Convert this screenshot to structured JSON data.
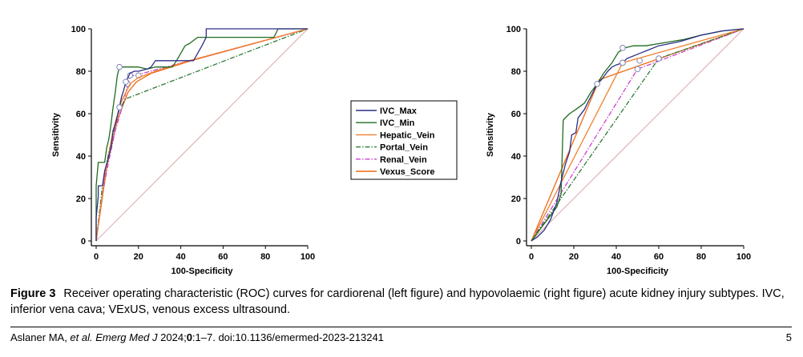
{
  "colors": {
    "IVC_Max": "#2b2f86",
    "IVC_Min": "#1f6b1f",
    "Hepatic_Vein": "#f08030",
    "Portal_Vein": "#2f7a36",
    "Renal_Vein": "#cc44cc",
    "Vexus_Score": "#ee6a10",
    "reference": "#d9a9a9"
  },
  "chart_data": [
    {
      "type": "line",
      "xlabel": "100-Specificity",
      "ylabel": "Sensitivity",
      "xlim": [
        0,
        100
      ],
      "ylim": [
        0,
        100
      ],
      "xticks": [
        "0",
        "20",
        "40",
        "60",
        "80",
        "100"
      ],
      "yticks": [
        "0",
        "20",
        "40",
        "60",
        "80",
        "100"
      ],
      "legend": [
        "IVC_Max",
        "IVC_Min",
        "Hepatic_Vein",
        "Portal_Vein",
        "Renal_Vein",
        "Vexus_Score"
      ],
      "legend_position": "right",
      "series": [
        {
          "name": "IVC_Max",
          "style": "solid",
          "points": [
            [
              0,
              0
            ],
            [
              0,
              11
            ],
            [
              1,
              21
            ],
            [
              1,
              26
            ],
            [
              3,
              26
            ],
            [
              4,
              33
            ],
            [
              6,
              40
            ],
            [
              7,
              44
            ],
            [
              8,
              52
            ],
            [
              9,
              55
            ],
            [
              10,
              59
            ],
            [
              11,
              63
            ],
            [
              12,
              68
            ],
            [
              13,
              71
            ],
            [
              14,
              75
            ],
            [
              16,
              79
            ],
            [
              18,
              80
            ],
            [
              20,
              80
            ],
            [
              24,
              81
            ],
            [
              26,
              82
            ],
            [
              28,
              85
            ],
            [
              40,
              85
            ],
            [
              44,
              85
            ],
            [
              46,
              85
            ],
            [
              50,
              92
            ],
            [
              52,
              96
            ],
            [
              52,
              100
            ],
            [
              100,
              100
            ]
          ],
          "markers": [
            [
              11,
              63
            ],
            [
              14,
              75
            ]
          ]
        },
        {
          "name": "IVC_Min",
          "style": "solid",
          "points": [
            [
              0,
              0
            ],
            [
              0,
              26
            ],
            [
              1,
              37
            ],
            [
              4,
              37
            ],
            [
              5,
              44
            ],
            [
              6,
              48
            ],
            [
              7,
              55
            ],
            [
              8,
              63
            ],
            [
              9,
              70
            ],
            [
              10,
              78
            ],
            [
              11,
              82
            ],
            [
              12,
              82
            ],
            [
              20,
              82
            ],
            [
              24,
              81
            ],
            [
              28,
              82
            ],
            [
              36,
              82
            ],
            [
              38,
              85
            ],
            [
              42,
              92
            ],
            [
              44,
              93
            ],
            [
              48,
              96
            ],
            [
              52,
              96
            ],
            [
              84,
              96
            ],
            [
              86,
              100
            ],
            [
              100,
              100
            ]
          ],
          "markers": [
            [
              11,
              82
            ]
          ]
        },
        {
          "name": "Hepatic_Vein",
          "style": "solid",
          "points": [
            [
              0,
              0
            ],
            [
              4,
              30
            ],
            [
              8,
              52
            ],
            [
              12,
              66
            ],
            [
              16,
              74
            ],
            [
              20,
              77
            ],
            [
              28,
              80
            ],
            [
              44,
              85
            ],
            [
              100,
              100
            ]
          ],
          "markers": []
        },
        {
          "name": "Portal_Vein",
          "style": "dashdot",
          "points": [
            [
              0,
              0
            ],
            [
              3,
              26
            ],
            [
              6,
              42
            ],
            [
              9,
              55
            ],
            [
              11,
              62
            ],
            [
              14,
              67
            ],
            [
              100,
              100
            ]
          ],
          "markers": []
        },
        {
          "name": "Renal_Vein",
          "style": "dashdot",
          "points": [
            [
              0,
              0
            ],
            [
              3,
              22
            ],
            [
              6,
              38
            ],
            [
              9,
              52
            ],
            [
              12,
              62
            ],
            [
              15,
              74
            ],
            [
              16,
              78
            ],
            [
              18,
              78
            ],
            [
              20,
              78
            ],
            [
              22,
              79
            ],
            [
              100,
              100
            ]
          ],
          "markers": [
            [
              15,
              74
            ],
            [
              16,
              78
            ],
            [
              20,
              78
            ]
          ]
        },
        {
          "name": "Vexus_Score",
          "style": "solid",
          "points": [
            [
              0,
              0
            ],
            [
              5,
              35
            ],
            [
              10,
              57
            ],
            [
              15,
              70
            ],
            [
              19,
              75
            ],
            [
              26,
              79
            ],
            [
              45,
              85
            ],
            [
              100,
              100
            ]
          ],
          "markers": []
        }
      ]
    },
    {
      "type": "line",
      "xlabel": "100-Specificity",
      "ylabel": "Sensitivity",
      "xlim": [
        0,
        100
      ],
      "ylim": [
        0,
        100
      ],
      "xticks": [
        "0",
        "20",
        "40",
        "60",
        "80",
        "100"
      ],
      "yticks": [
        "0",
        "20",
        "40",
        "60",
        "80",
        "100"
      ],
      "series": [
        {
          "name": "IVC_Max",
          "style": "solid",
          "points": [
            [
              0,
              0
            ],
            [
              3,
              2
            ],
            [
              6,
              5
            ],
            [
              9,
              10
            ],
            [
              12,
              18
            ],
            [
              14,
              28
            ],
            [
              16,
              36
            ],
            [
              18,
              42
            ],
            [
              19,
              50
            ],
            [
              21,
              51
            ],
            [
              22,
              58
            ],
            [
              25,
              62
            ],
            [
              27,
              66
            ],
            [
              29,
              70
            ],
            [
              31,
              74
            ],
            [
              33,
              76
            ],
            [
              36,
              80
            ],
            [
              38,
              82
            ],
            [
              40,
              83
            ],
            [
              43,
              84
            ],
            [
              45,
              86
            ],
            [
              50,
              88
            ],
            [
              55,
              90
            ],
            [
              60,
              92
            ],
            [
              70,
              94
            ],
            [
              80,
              97
            ],
            [
              90,
              99
            ],
            [
              100,
              100
            ]
          ],
          "markers": [
            [
              31,
              74
            ],
            [
              43,
              84
            ]
          ]
        },
        {
          "name": "IVC_Min",
          "style": "solid",
          "points": [
            [
              0,
              0
            ],
            [
              3,
              4
            ],
            [
              6,
              8
            ],
            [
              9,
              12
            ],
            [
              12,
              16
            ],
            [
              14,
              22
            ],
            [
              15,
              57
            ],
            [
              18,
              60
            ],
            [
              21,
              62
            ],
            [
              25,
              65
            ],
            [
              28,
              70
            ],
            [
              31,
              74
            ],
            [
              34,
              79
            ],
            [
              38,
              84
            ],
            [
              41,
              89
            ],
            [
              44,
              91
            ],
            [
              48,
              92
            ],
            [
              54,
              92
            ],
            [
              60,
              93
            ],
            [
              66,
              94
            ],
            [
              72,
              95
            ],
            [
              80,
              97
            ],
            [
              90,
              99
            ],
            [
              100,
              100
            ]
          ],
          "markers": [
            [
              43,
              91
            ]
          ]
        },
        {
          "name": "Hepatic_Vein",
          "style": "solid",
          "points": [
            [
              0,
              0
            ],
            [
              43,
              84
            ],
            [
              100,
              100
            ]
          ],
          "markers": [
            [
              43,
              84
            ]
          ]
        },
        {
          "name": "Portal_Vein",
          "style": "dashdot",
          "points": [
            [
              0,
              0
            ],
            [
              60,
              86
            ],
            [
              100,
              100
            ]
          ],
          "markers": [
            [
              60,
              86
            ]
          ]
        },
        {
          "name": "Renal_Vein",
          "style": "dashdot",
          "points": [
            [
              0,
              0
            ],
            [
              50,
              81
            ],
            [
              100,
              100
            ]
          ],
          "markers": [
            [
              50,
              81
            ],
            [
              51,
              85
            ]
          ]
        },
        {
          "name": "Vexus_Score",
          "style": "solid",
          "points": [
            [
              0,
              0
            ],
            [
              32,
              76
            ],
            [
              100,
              100
            ]
          ],
          "markers": []
        }
      ]
    }
  ],
  "caption": {
    "figure_label": "Figure 3",
    "text": "Receiver operating characteristic (ROC) curves for cardiorenal (left figure) and hypovolaemic (right figure) acute kidney injury subtypes. IVC, inferior vena cava; VExUS, venous excess ultrasound."
  },
  "footer": {
    "author": "Aslaner MA, ",
    "etal": "et al.",
    "journal": " Emerg Med J",
    "year": " 2024;",
    "volume": "0",
    "pages": ":1–7. doi:10.1136/emermed-2023-213241",
    "page_number": "5"
  }
}
